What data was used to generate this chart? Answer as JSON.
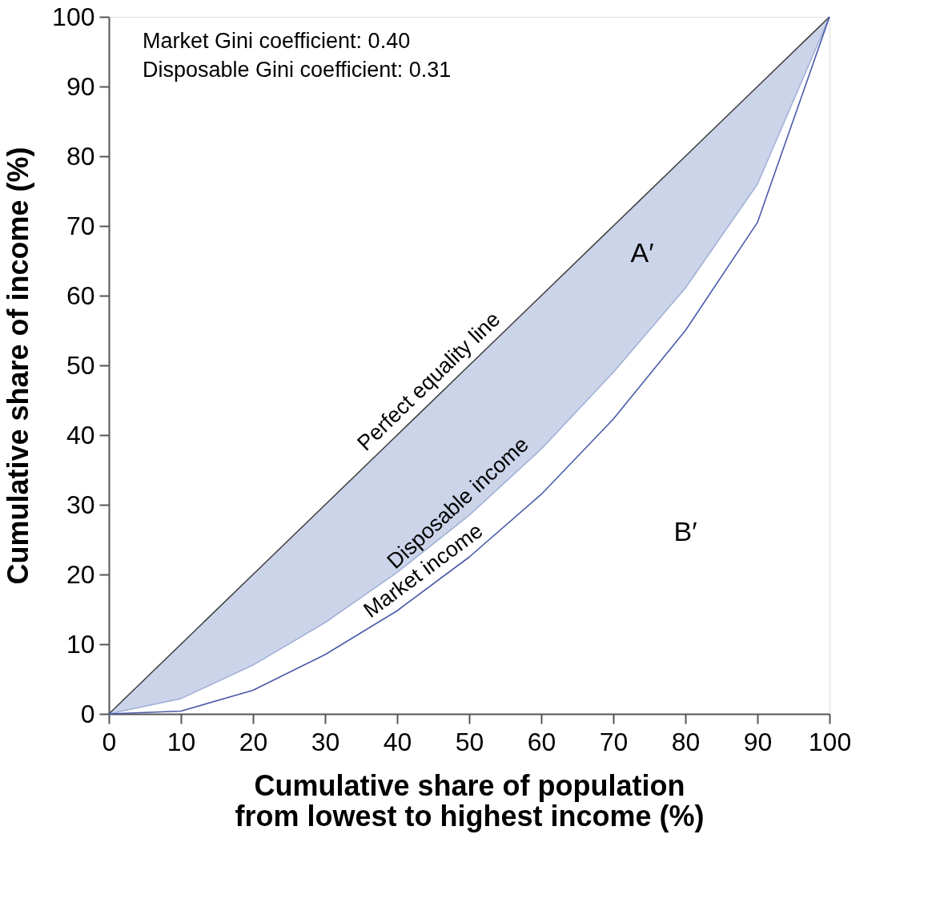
{
  "chart_data": {
    "type": "line",
    "xlabel": "Cumulative share of population\nfrom lowest to highest income (%)",
    "ylabel": "Cumulative share of income (%)",
    "x": [
      0,
      10,
      20,
      30,
      40,
      50,
      60,
      70,
      80,
      90,
      100
    ],
    "series": [
      {
        "name": "Perfect equality line",
        "color": "#404040",
        "values": [
          0,
          10,
          20,
          30,
          40,
          50,
          60,
          70,
          80,
          90,
          100
        ]
      },
      {
        "name": "Disposable income",
        "color": "#a3b1d8",
        "values": [
          0,
          2.2,
          7,
          13.1,
          20.3,
          28.5,
          38,
          49,
          61.1,
          76,
          100
        ],
        "lower": [
          0,
          2.2,
          7,
          13.1,
          20.3,
          28.5,
          38,
          49,
          61.1,
          76,
          100
        ],
        "upper": [
          0,
          10,
          20,
          30,
          40,
          50,
          60,
          70,
          80,
          90,
          100
        ]
      },
      {
        "name": "Market income",
        "color": "#4a5aa8",
        "values": [
          0,
          0.4,
          3.4,
          8.5,
          14.8,
          22.5,
          31.5,
          42.3,
          55,
          70.5,
          100
        ]
      }
    ],
    "xlim": [
      0,
      100
    ],
    "ylim": [
      0,
      100
    ],
    "xticks": [
      0,
      10,
      20,
      30,
      40,
      50,
      60,
      70,
      80,
      90,
      100
    ],
    "yticks": [
      0,
      10,
      20,
      30,
      40,
      50,
      60,
      70,
      80,
      90,
      100
    ],
    "grid": false,
    "legend": false,
    "marker": "none",
    "line_style": "solid",
    "annotations": [
      "Market Gini coefficient: 0.40",
      "Disposable Gini coefficient: 0.31",
      "A′",
      "B′"
    ]
  }
}
